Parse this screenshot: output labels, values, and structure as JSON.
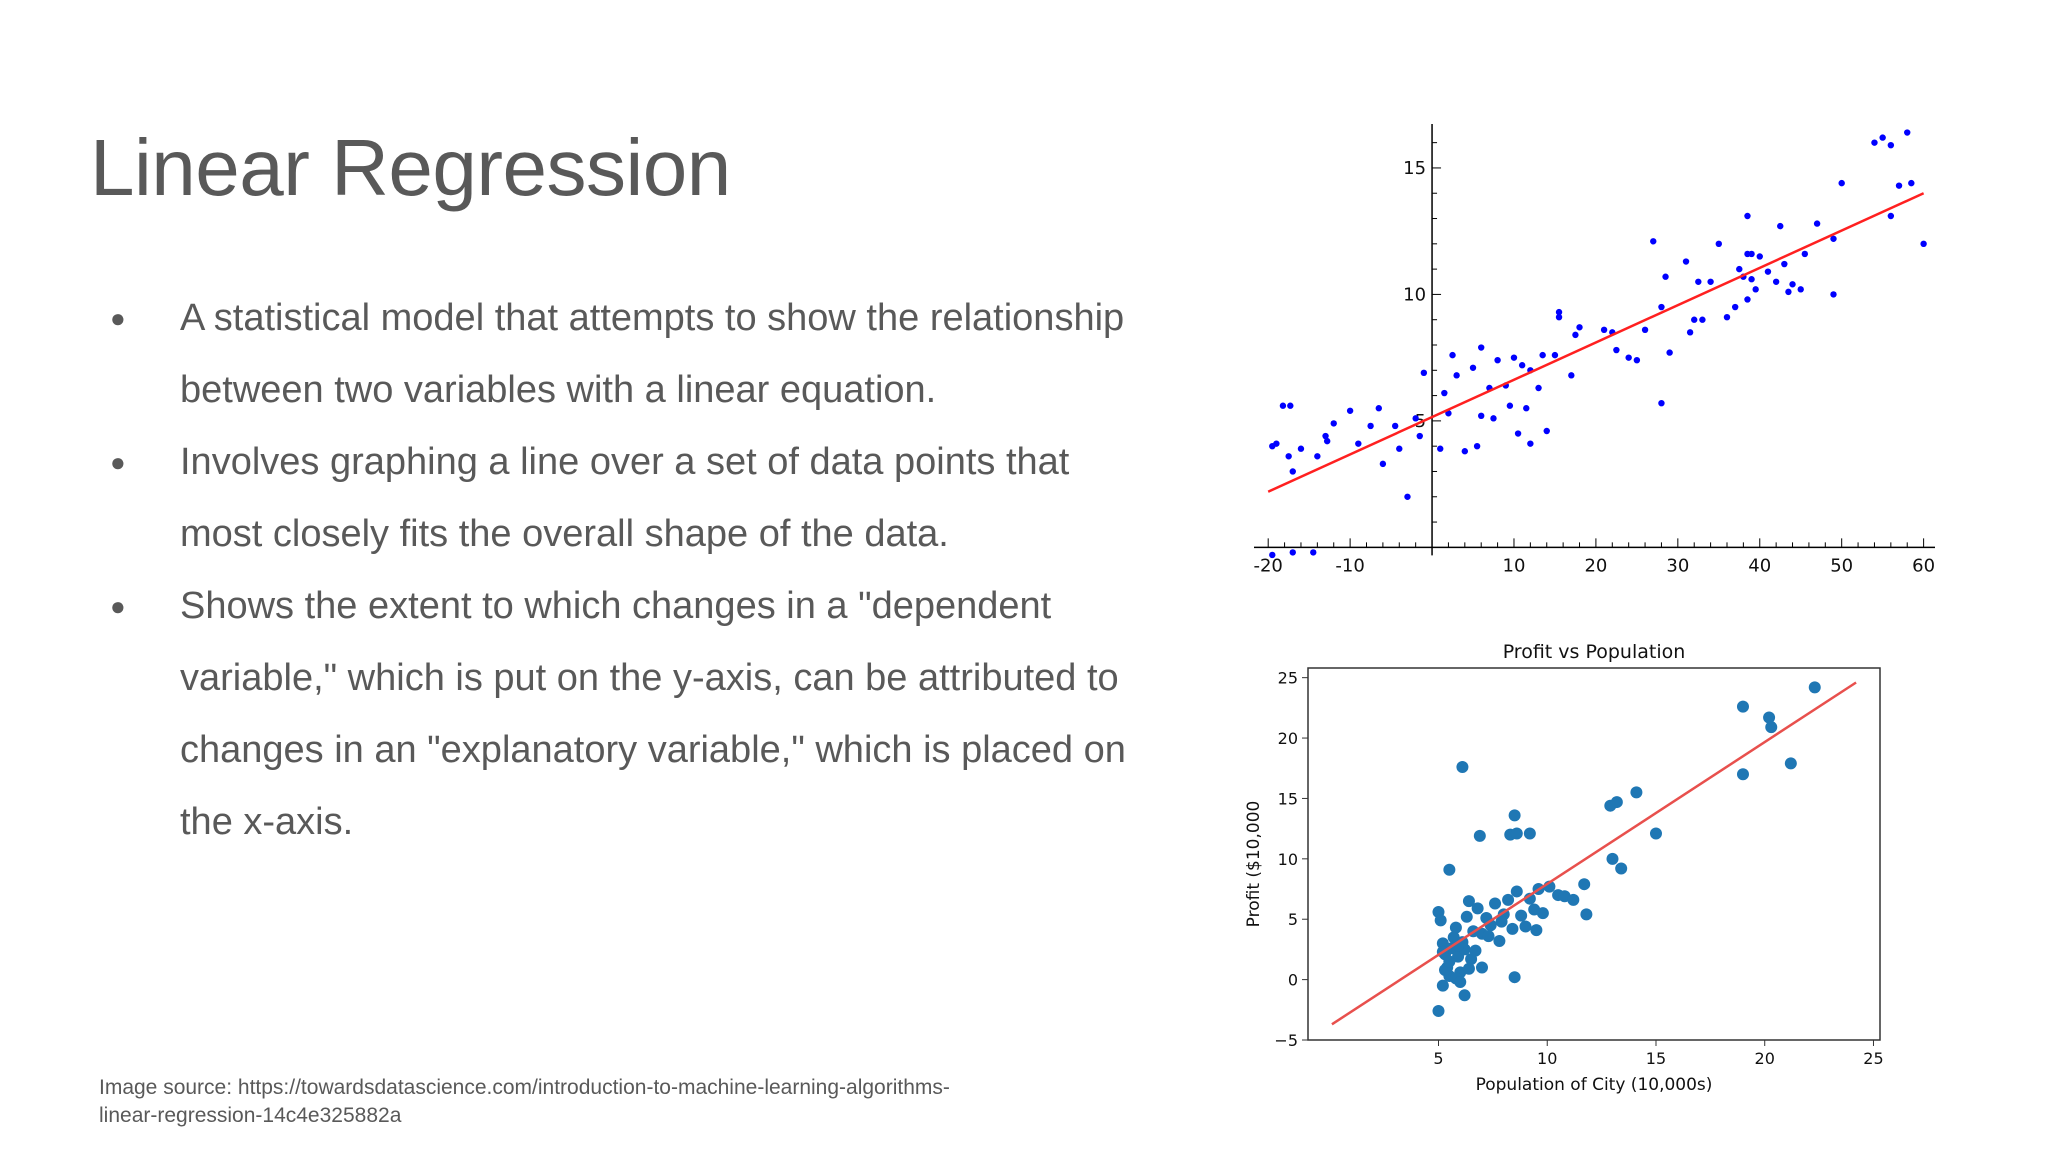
{
  "slide": {
    "title": "Linear Regression",
    "bullets": [
      "A statistical model that attempts to show the relationship between two variables with a linear equation.",
      "Involves graphing a line over a set of data points that most closely fits the overall shape of the data.",
      "Shows the extent to which changes in a \"dependent variable,\" which is put on the y-axis, can be attributed to changes in an \"explanatory variable,\" which is placed on the x-axis."
    ],
    "bullet_char": "●",
    "source": "Image source: https://towardsdatascience.com/introduction-to-machine-learning-algorithms-linear-regression-14c4e325882a"
  },
  "chart_data": [
    {
      "type": "scatter",
      "title": "",
      "xlabel": "",
      "ylabel": "",
      "xlim": [
        -21,
        62
      ],
      "ylim": [
        -0.5,
        16.5
      ],
      "xticks": [
        -20,
        -10,
        10,
        20,
        30,
        40,
        50,
        60
      ],
      "yticks": [
        5,
        10,
        15
      ],
      "point_color": "#0000ff",
      "line_color": "#ff2020",
      "regression_line": {
        "x": [
          -20,
          60
        ],
        "y": [
          2.2,
          14.0
        ]
      },
      "points": [
        [
          -19.5,
          4.0
        ],
        [
          -19,
          4.1
        ],
        [
          -18.2,
          5.6
        ],
        [
          -17.5,
          3.6
        ],
        [
          -17.3,
          5.6
        ],
        [
          -17,
          3.0
        ],
        [
          -16,
          3.9
        ],
        [
          -14,
          3.6
        ],
        [
          -13,
          4.4
        ],
        [
          -12.8,
          4.2
        ],
        [
          -12,
          4.9
        ],
        [
          -10,
          5.4
        ],
        [
          -9,
          4.1
        ],
        [
          -7.5,
          4.8
        ],
        [
          -6.5,
          5.5
        ],
        [
          -6,
          3.3
        ],
        [
          -4.5,
          4.8
        ],
        [
          -4,
          3.9
        ],
        [
          -3,
          2.0
        ],
        [
          -2,
          5.1
        ],
        [
          -1.5,
          4.4
        ],
        [
          -1,
          6.9
        ],
        [
          1,
          3.9
        ],
        [
          1.5,
          6.1
        ],
        [
          2,
          5.3
        ],
        [
          2.5,
          7.6
        ],
        [
          3,
          6.8
        ],
        [
          4,
          3.8
        ],
        [
          5,
          7.1
        ],
        [
          5.5,
          4.0
        ],
        [
          6,
          7.9
        ],
        [
          6,
          5.2
        ],
        [
          7,
          6.3
        ],
        [
          7.5,
          5.1
        ],
        [
          8,
          7.4
        ],
        [
          9,
          6.4
        ],
        [
          9.5,
          5.6
        ],
        [
          10,
          7.5
        ],
        [
          10.5,
          4.5
        ],
        [
          11,
          7.2
        ],
        [
          11.5,
          5.5
        ],
        [
          12,
          4.1
        ],
        [
          12,
          7.0
        ],
        [
          13,
          6.3
        ],
        [
          13.5,
          7.6
        ],
        [
          14,
          4.6
        ],
        [
          15,
          7.6
        ],
        [
          15.5,
          9.3
        ],
        [
          15.5,
          9.1
        ],
        [
          17,
          6.8
        ],
        [
          17.5,
          8.4
        ],
        [
          18,
          8.7
        ],
        [
          21,
          8.6
        ],
        [
          22,
          8.5
        ],
        [
          22.5,
          7.8
        ],
        [
          24,
          7.5
        ],
        [
          25,
          7.4
        ],
        [
          26,
          8.6
        ],
        [
          27,
          12.1
        ],
        [
          28,
          5.7
        ],
        [
          28,
          9.5
        ],
        [
          28.5,
          10.7
        ],
        [
          29,
          7.7
        ],
        [
          31,
          11.3
        ],
        [
          31.5,
          8.5
        ],
        [
          32,
          9.0
        ],
        [
          32.5,
          10.5
        ],
        [
          33,
          9.0
        ],
        [
          34,
          10.5
        ],
        [
          35,
          12.0
        ],
        [
          36,
          9.1
        ],
        [
          37,
          9.5
        ],
        [
          37.5,
          11.0
        ],
        [
          38,
          10.7
        ],
        [
          38.5,
          11.6
        ],
        [
          38.5,
          9.8
        ],
        [
          38.5,
          13.1
        ],
        [
          39,
          10.6
        ],
        [
          39,
          11.6
        ],
        [
          39.5,
          10.2
        ],
        [
          40,
          11.5
        ],
        [
          41,
          10.9
        ],
        [
          42,
          10.5
        ],
        [
          42.5,
          12.7
        ],
        [
          43,
          11.2
        ],
        [
          43.5,
          10.1
        ],
        [
          44,
          10.4
        ],
        [
          45,
          10.2
        ],
        [
          45.5,
          11.6
        ],
        [
          47,
          12.8
        ],
        [
          49,
          12.2
        ],
        [
          49,
          10.0
        ],
        [
          50,
          14.4
        ],
        [
          54,
          16.0
        ],
        [
          55,
          16.2
        ],
        [
          56,
          15.9
        ],
        [
          56,
          13.1
        ],
        [
          57,
          14.3
        ],
        [
          58,
          16.4
        ],
        [
          58.5,
          14.4
        ],
        [
          60,
          12.0
        ],
        [
          -19.5,
          -0.3
        ],
        [
          -17,
          -0.2
        ],
        [
          -14.5,
          -0.2
        ]
      ]
    },
    {
      "type": "scatter",
      "title": "Profit vs Population",
      "xlabel": "Population of City (10,000s)",
      "ylabel": "Profit ($10,000",
      "xlim": [
        -1,
        25.3
      ],
      "ylim": [
        -5,
        25.8
      ],
      "xticks": [
        5,
        10,
        15,
        20,
        25
      ],
      "yticks": [
        -5,
        0,
        5,
        10,
        15,
        20,
        25
      ],
      "point_color": "#1f77b4",
      "line_color": "#e8504d",
      "regression_line": {
        "x": [
          0.1,
          24.2
        ],
        "y": [
          -3.7,
          24.6
        ]
      },
      "points": [
        [
          6.1,
          17.6
        ],
        [
          5.5,
          9.1
        ],
        [
          6.9,
          11.9
        ],
        [
          8.3,
          12.0
        ],
        [
          8.5,
          13.6
        ],
        [
          8.6,
          12.1
        ],
        [
          9.2,
          12.1
        ],
        [
          12.9,
          14.4
        ],
        [
          13.2,
          14.7
        ],
        [
          14.1,
          15.5
        ],
        [
          13.0,
          10.0
        ],
        [
          13.4,
          9.2
        ],
        [
          15.0,
          12.1
        ],
        [
          19.0,
          22.6
        ],
        [
          20.2,
          21.7
        ],
        [
          20.3,
          20.9
        ],
        [
          22.3,
          24.2
        ],
        [
          21.2,
          17.9
        ],
        [
          19.0,
          17.0
        ],
        [
          5.0,
          -2.6
        ],
        [
          5.2,
          -0.5
        ],
        [
          6.2,
          -1.3
        ],
        [
          7.0,
          1.0
        ],
        [
          8.5,
          0.2
        ],
        [
          5.0,
          5.6
        ],
        [
          5.1,
          4.9
        ],
        [
          5.2,
          3.0
        ],
        [
          5.3,
          2.1
        ],
        [
          5.4,
          1.0
        ],
        [
          5.5,
          0.3
        ],
        [
          5.6,
          2.6
        ],
        [
          5.7,
          3.5
        ],
        [
          5.8,
          4.3
        ],
        [
          5.9,
          1.9
        ],
        [
          6.0,
          0.6
        ],
        [
          6.1,
          3.1
        ],
        [
          6.2,
          2.5
        ],
        [
          6.3,
          5.2
        ],
        [
          6.4,
          6.5
        ],
        [
          6.5,
          1.7
        ],
        [
          6.6,
          4.0
        ],
        [
          6.8,
          5.9
        ],
        [
          7.0,
          3.8
        ],
        [
          7.2,
          5.1
        ],
        [
          7.4,
          4.5
        ],
        [
          7.6,
          6.3
        ],
        [
          7.8,
          3.2
        ],
        [
          8.0,
          5.4
        ],
        [
          8.2,
          6.6
        ],
        [
          8.4,
          4.2
        ],
        [
          8.6,
          7.3
        ],
        [
          8.8,
          5.3
        ],
        [
          9.0,
          4.4
        ],
        [
          9.2,
          6.7
        ],
        [
          9.5,
          4.1
        ],
        [
          9.6,
          7.5
        ],
        [
          9.8,
          5.5
        ],
        [
          10.1,
          7.7
        ],
        [
          10.5,
          7.0
        ],
        [
          10.8,
          6.9
        ],
        [
          11.2,
          6.6
        ],
        [
          11.8,
          5.4
        ],
        [
          11.7,
          7.9
        ],
        [
          5.3,
          0.8
        ],
        [
          5.8,
          0.1
        ],
        [
          6.0,
          -0.2
        ],
        [
          5.5,
          1.5
        ],
        [
          6.4,
          0.9
        ],
        [
          5.2,
          2.3
        ],
        [
          5.9,
          2.8
        ],
        [
          6.7,
          2.4
        ],
        [
          7.3,
          3.6
        ],
        [
          7.9,
          4.8
        ],
        [
          9.4,
          5.8
        ]
      ]
    }
  ]
}
